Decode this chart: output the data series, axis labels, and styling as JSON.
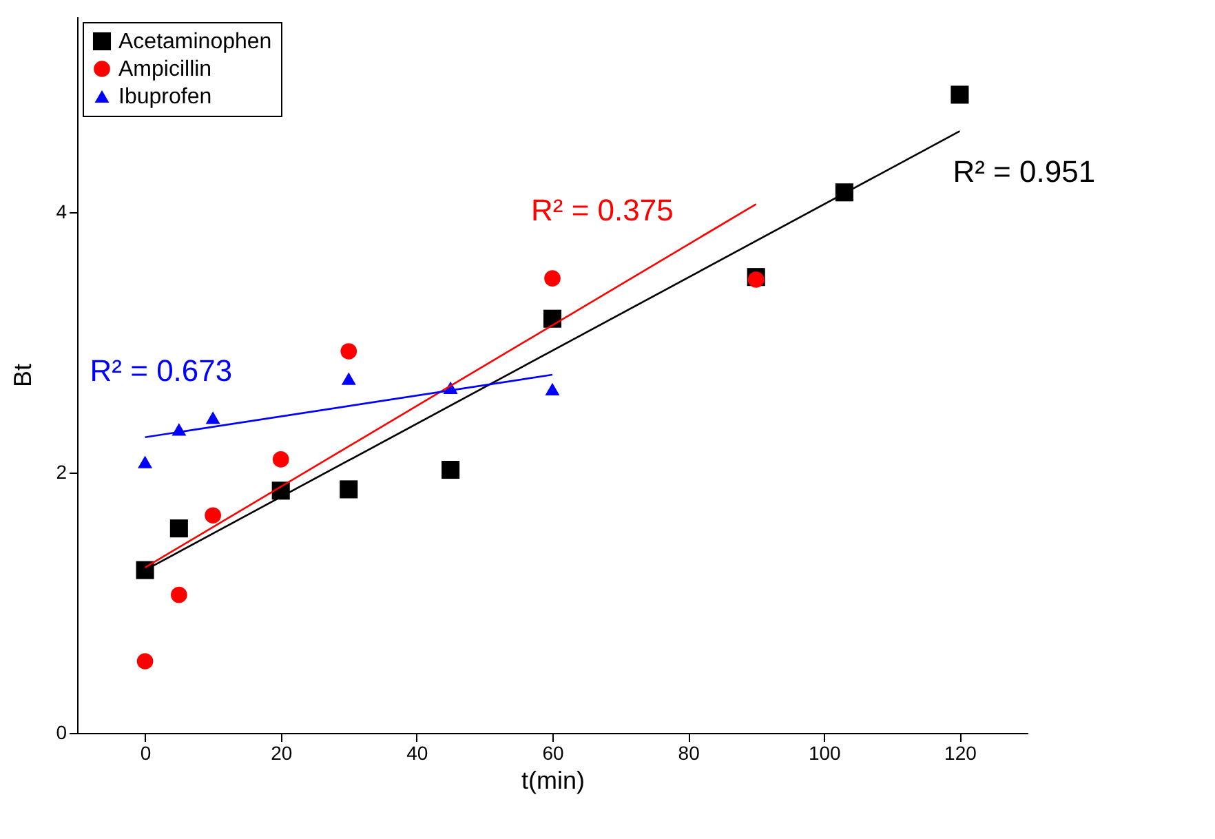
{
  "chart_data": {
    "type": "scatter",
    "xlabel": "t(min)",
    "ylabel": "Bt",
    "xlim": [
      -10,
      130
    ],
    "xticks": [
      0,
      20,
      40,
      60,
      80,
      100,
      120
    ],
    "ylim": [
      0,
      5.5
    ],
    "yticks": [
      0,
      2,
      4
    ],
    "grid": false,
    "legend": "top left",
    "series": [
      {
        "name": "Acetaminophen",
        "color": "#000000",
        "marker": "square",
        "x": [
          0,
          5,
          20,
          30,
          45,
          60,
          90,
          103,
          120
        ],
        "values": [
          1.25,
          1.57,
          1.86,
          1.87,
          2.02,
          3.18,
          3.5,
          4.15,
          4.9
        ]
      },
      {
        "name": "Ampicillin",
        "color": "#ff0000",
        "marker": "circle",
        "x": [
          0,
          5,
          10,
          20,
          30,
          60,
          90
        ],
        "values": [
          0.55,
          1.06,
          1.67,
          2.1,
          2.93,
          3.49,
          3.48
        ]
      },
      {
        "name": "Ibuprofen",
        "color": "#0000ff",
        "marker": "triangle",
        "x": [
          0,
          5,
          10,
          30,
          45,
          60
        ],
        "values": [
          2.08,
          2.33,
          2.42,
          2.72,
          2.65,
          2.64
        ]
      },
      {
        "type": "line",
        "color": "#000000",
        "x": [
          0,
          120
        ],
        "values": [
          1.25,
          4.62
        ]
      },
      {
        "type": "line",
        "color": "#ff0000",
        "x": [
          0,
          90
        ],
        "values": [
          1.27,
          4.06
        ]
      },
      {
        "type": "line",
        "color": "#0000ff",
        "x": [
          0,
          60
        ],
        "values": [
          2.27,
          2.75
        ]
      }
    ],
    "annotations": [
      "R² = 0.951",
      "R² = 0.375",
      "R² = 0.673"
    ]
  }
}
